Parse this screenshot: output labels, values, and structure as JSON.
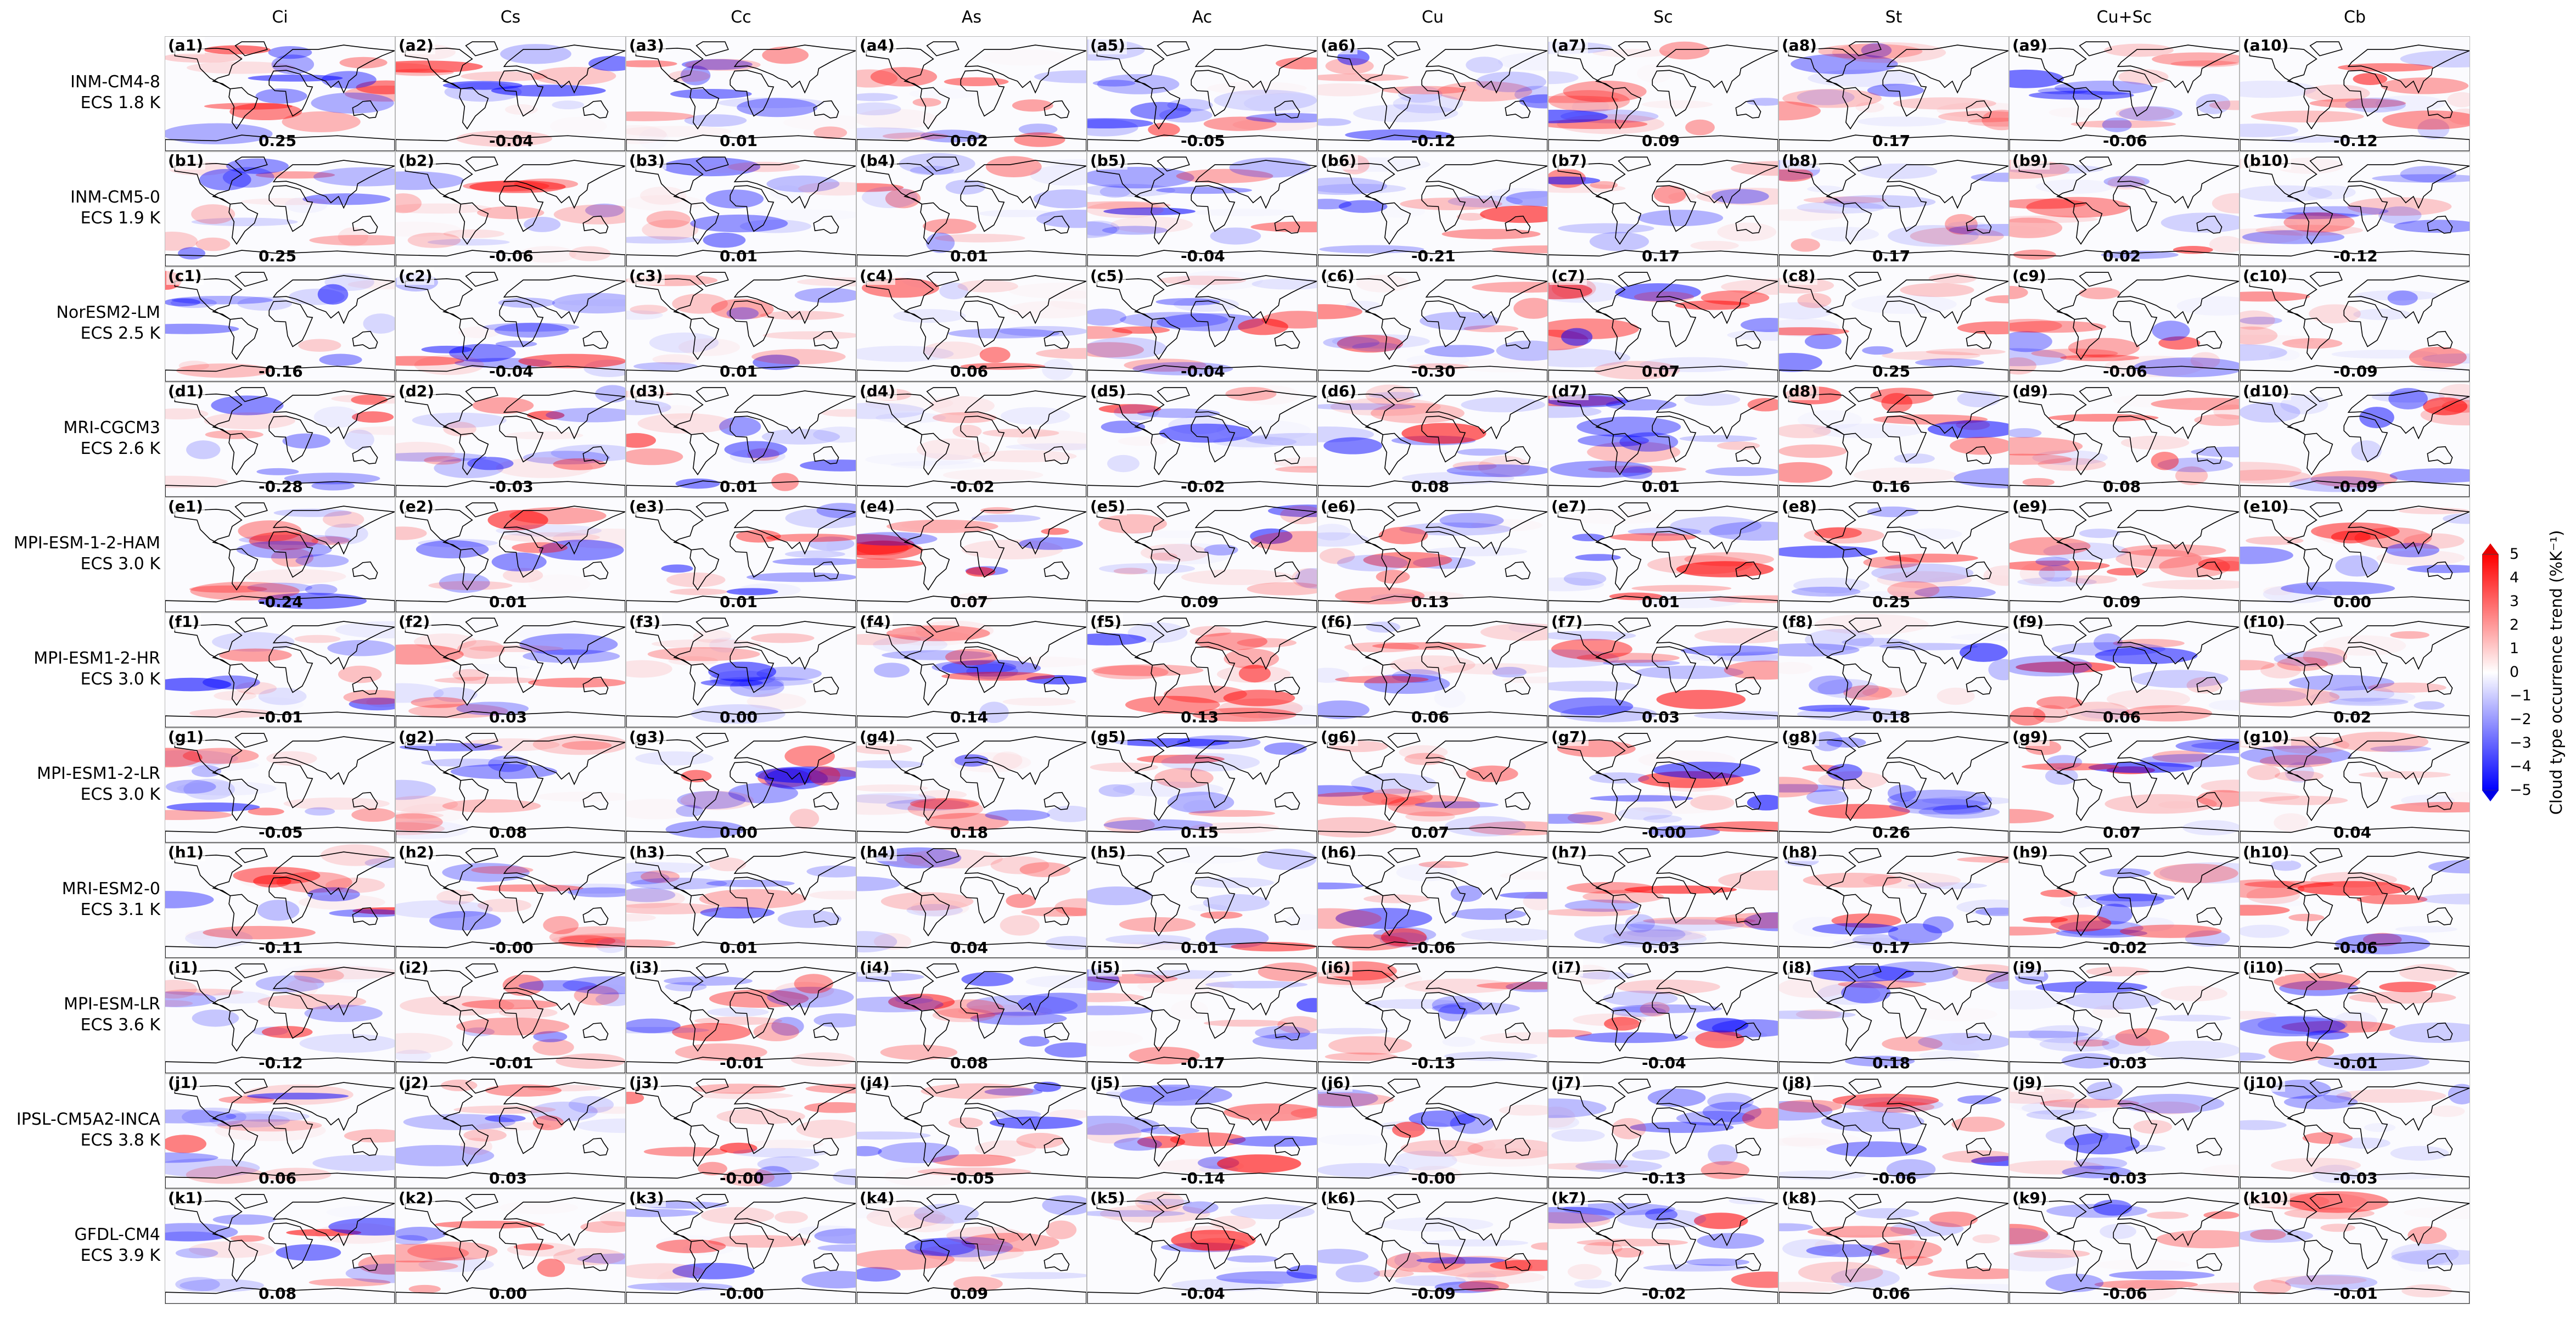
{
  "figure": {
    "columns": [
      "Ci",
      "Cs",
      "Cc",
      "As",
      "Ac",
      "Cu",
      "Sc",
      "St",
      "Cu+Sc",
      "Cb"
    ],
    "rows": [
      {
        "letter": "a",
        "model": "INM-CM4-8",
        "ecs": "ECS 1.8 K",
        "values": [
          "0.25",
          "-0.04",
          "0.01",
          "0.02",
          "-0.05",
          "-0.12",
          "0.09",
          "0.17",
          "-0.06",
          "-0.12"
        ]
      },
      {
        "letter": "b",
        "model": "INM-CM5-0",
        "ecs": "ECS 1.9 K",
        "values": [
          "0.25",
          "-0.06",
          "0.01",
          "0.01",
          "-0.04",
          "-0.21",
          "0.17",
          "0.17",
          "0.02",
          "-0.12"
        ]
      },
      {
        "letter": "c",
        "model": "NorESM2-LM",
        "ecs": "ECS 2.5 K",
        "values": [
          "-0.16",
          "-0.04",
          "0.01",
          "0.06",
          "-0.04",
          "-0.30",
          "0.07",
          "0.25",
          "-0.06",
          "-0.09"
        ]
      },
      {
        "letter": "d",
        "model": "MRI-CGCM3",
        "ecs": "ECS 2.6 K",
        "values": [
          "-0.28",
          "-0.03",
          "0.01",
          "-0.02",
          "-0.02",
          "0.08",
          "0.01",
          "0.16",
          "0.08",
          "-0.09"
        ]
      },
      {
        "letter": "e",
        "model": "MPI-ESM-1-2-HAM",
        "ecs": "ECS 3.0 K",
        "values": [
          "-0.24",
          "0.01",
          "0.01",
          "0.07",
          "0.09",
          "0.13",
          "0.01",
          "0.25",
          "0.09",
          "0.00"
        ]
      },
      {
        "letter": "f",
        "model": "MPI-ESM1-2-HR",
        "ecs": "ECS 3.0 K",
        "values": [
          "-0.01",
          "0.03",
          "0.00",
          "0.14",
          "0.13",
          "0.06",
          "0.03",
          "0.18",
          "0.06",
          "0.02"
        ]
      },
      {
        "letter": "g",
        "model": "MPI-ESM1-2-LR",
        "ecs": "ECS 3.0 K",
        "values": [
          "-0.05",
          "0.08",
          "0.00",
          "0.18",
          "0.15",
          "0.07",
          "-0.00",
          "0.26",
          "0.07",
          "0.04"
        ]
      },
      {
        "letter": "h",
        "model": "MRI-ESM2-0",
        "ecs": "ECS 3.1 K",
        "values": [
          "-0.11",
          "-0.00",
          "0.01",
          "0.04",
          "0.01",
          "-0.06",
          "0.03",
          "0.17",
          "-0.02",
          "-0.06"
        ]
      },
      {
        "letter": "i",
        "model": "MPI-ESM-LR",
        "ecs": "ECS 3.6 K",
        "values": [
          "-0.12",
          "-0.01",
          "-0.01",
          "0.08",
          "-0.17",
          "-0.13",
          "-0.04",
          "0.18",
          "-0.03",
          "-0.01"
        ]
      },
      {
        "letter": "j",
        "model": "IPSL-CM5A2-INCA",
        "ecs": "ECS 3.8 K",
        "values": [
          "0.06",
          "0.03",
          "-0.00",
          "-0.05",
          "-0.14",
          "-0.00",
          "-0.13",
          "-0.06",
          "-0.03",
          "-0.03"
        ]
      },
      {
        "letter": "k",
        "model": "GFDL-CM4",
        "ecs": "ECS 3.9 K",
        "values": [
          "0.08",
          "0.00",
          "-0.00",
          "0.09",
          "-0.04",
          "-0.09",
          "-0.02",
          "0.06",
          "-0.06",
          "-0.01"
        ]
      }
    ],
    "colorbar": {
      "label": "Cloud type occurrence trend (%K⁻¹)",
      "ticks": [
        "5",
        "4",
        "3",
        "2",
        "1",
        "0",
        "−1",
        "−2",
        "−3",
        "−4",
        "−5"
      ],
      "min": -5,
      "max": 5,
      "colors": {
        "low": "#0000ff",
        "mid": "#ffffff",
        "high": "#ff0000"
      }
    },
    "colors": {
      "coastline": "#000000",
      "panel_border": "#b8b8b8"
    }
  }
}
